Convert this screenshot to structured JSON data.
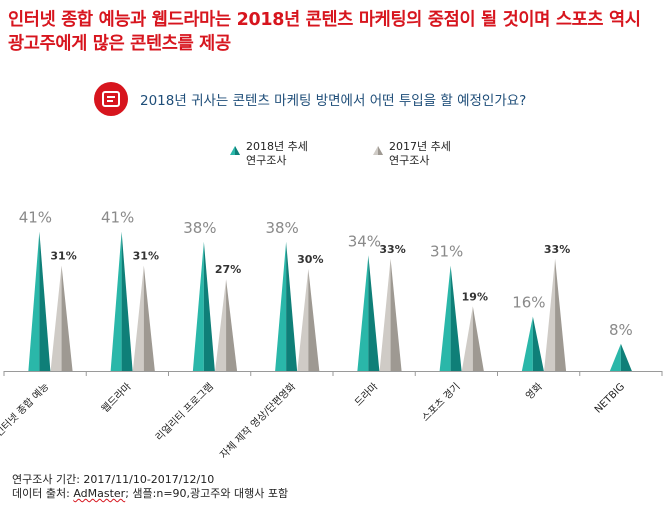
{
  "headline": "인터넷 종합 예능과 웹드라마는 2018년 콘텐츠 마케팅의 중점이 될 것이며 스포츠 역시 광고주에게 많은 콘텐츠를 제공",
  "question": "2018년 귀사는 콘텐츠 마케팅 방면에서 어떤 투입을 할 예정인가요?",
  "icons": {
    "question": "document-icon"
  },
  "colors": {
    "s2018_light": "#2ab7a9",
    "s2018_dark": "#0f7f78",
    "s2017_light": "#cfcbc6",
    "s2017_dark": "#9e9992",
    "headline": "#d7151e",
    "question": "#1f4e79"
  },
  "chart_data": {
    "type": "bar",
    "categories": [
      "인터넷 종합 예능",
      "웹드라마",
      "리얼리티 프로그램",
      "자체 제작 영상/단편영화",
      "드라마",
      "스포츠 경기",
      "영화",
      "NETBIG"
    ],
    "series": [
      {
        "name": "2018년 추세 연구조사",
        "values": [
          41,
          41,
          38,
          38,
          34,
          31,
          16,
          8
        ],
        "labels": [
          "41%",
          "41%",
          "38%",
          "38%",
          "34%",
          "31%",
          "16%",
          "8%"
        ]
      },
      {
        "name": "2017년 추세 연구조사",
        "values": [
          31,
          31,
          27,
          30,
          33,
          19,
          33,
          null
        ],
        "labels": [
          "31%",
          "31%",
          "27%",
          "30%",
          "33%",
          "19%",
          "33%",
          ""
        ]
      }
    ],
    "legend": [
      {
        "line1": "2018년 추세",
        "line2": "연구조사"
      },
      {
        "line1": "2017년 추세",
        "line2": "연구조사"
      }
    ],
    "ylim": [
      0,
      45
    ],
    "grid": false,
    "legend_position": "top-left"
  },
  "footnote": {
    "period": "연구조사 기간: 2017/11/10-2017/12/10",
    "source_prefix": "데이터 출처: ",
    "source_name": "AdMaster",
    "source_suffix": "; 샘플:n=90,광고주와 대행사 포함"
  }
}
